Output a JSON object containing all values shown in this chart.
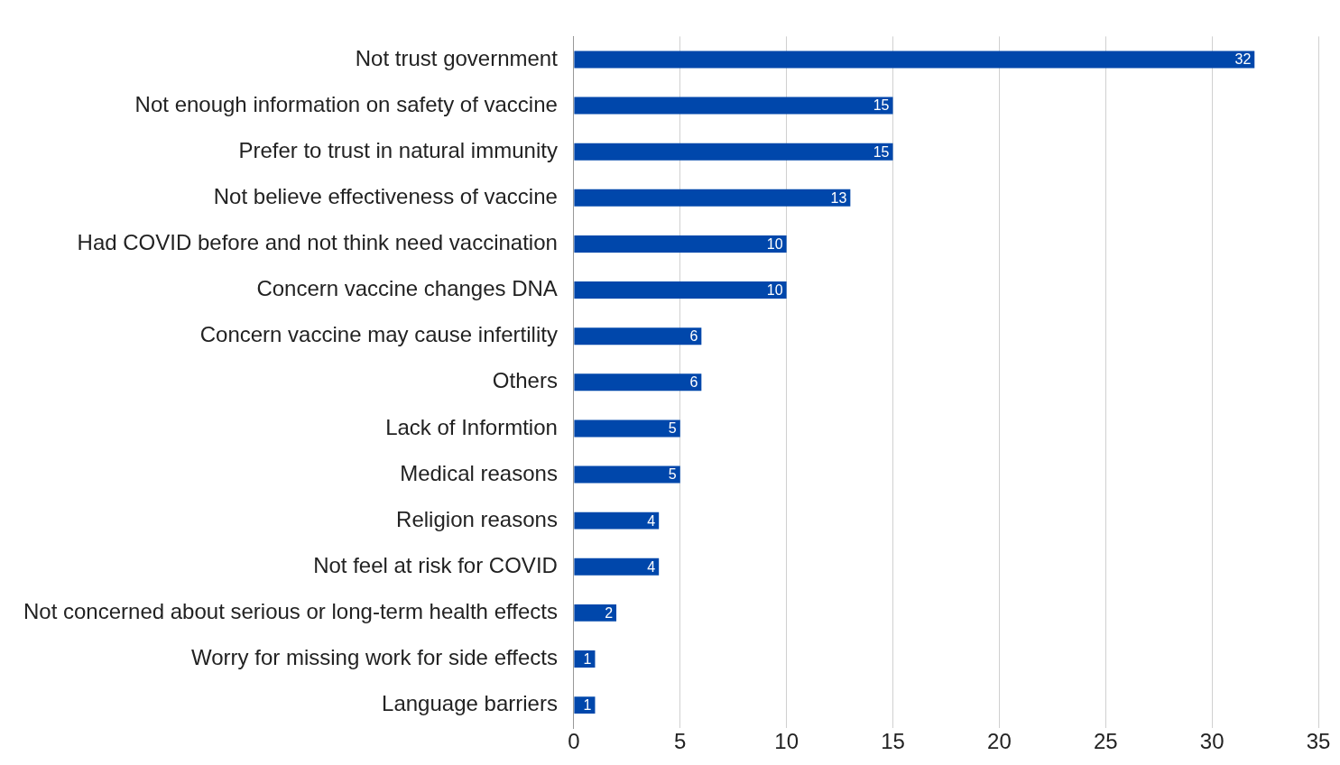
{
  "chart_data": {
    "type": "bar",
    "orientation": "horizontal",
    "categories": [
      "Not trust government",
      "Not enough information on safety of vaccine",
      "Prefer to trust in natural immunity",
      "Not believe effectiveness of vaccine",
      "Had COVID before and not think need vaccination",
      "Concern vaccine changes DNA",
      "Concern vaccine may cause infertility",
      "Others",
      "Lack of Informtion",
      "Medical reasons",
      "Religion reasons",
      "Not feel at risk for COVID",
      "Not concerned about serious or long-term health effects",
      "Worry for missing work for side effects",
      "Language barriers"
    ],
    "values": [
      32,
      15,
      15,
      13,
      10,
      10,
      6,
      6,
      5,
      5,
      4,
      4,
      2,
      1,
      1
    ],
    "color": "#0047ab",
    "xlim": [
      0,
      35
    ],
    "xticks": [
      0,
      5,
      10,
      15,
      20,
      25,
      30,
      35
    ],
    "grid": "x",
    "legend": false,
    "data_labels": true
  }
}
